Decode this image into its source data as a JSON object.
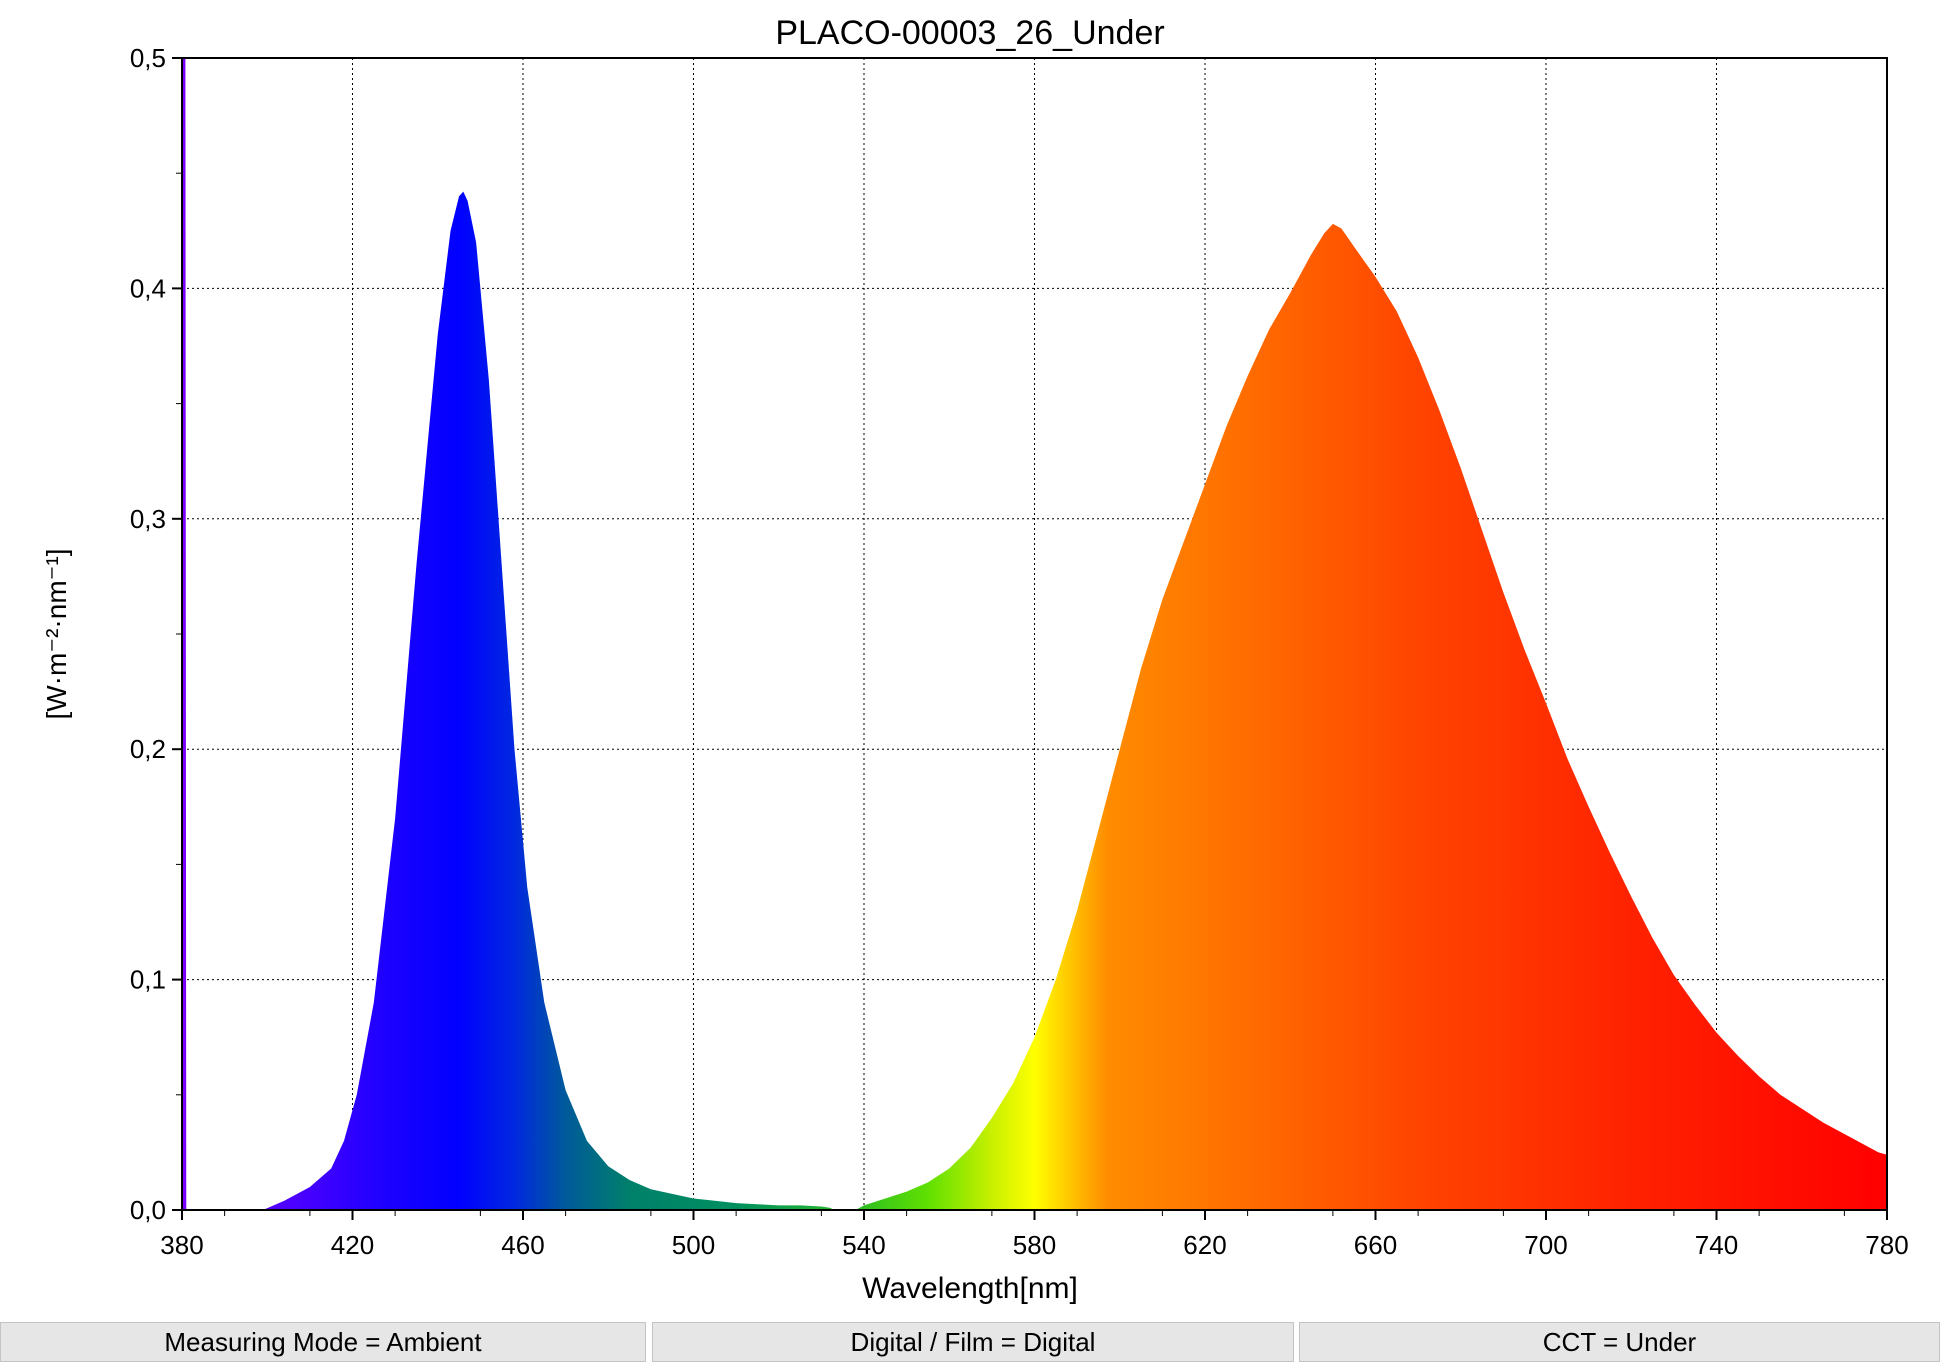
{
  "chart_data": {
    "type": "area",
    "title": "PLACO-00003_26_Under",
    "xlabel": "Wavelength[nm]",
    "ylabel": "[W·m⁻²·nm⁻¹]",
    "xlim": [
      380,
      780
    ],
    "ylim": [
      0,
      0.5
    ],
    "xticks": [
      380,
      420,
      460,
      500,
      540,
      580,
      620,
      660,
      700,
      740,
      780
    ],
    "xtick_labels": [
      "380",
      "420",
      "460",
      "500",
      "540",
      "580",
      "620",
      "660",
      "700",
      "740",
      "780"
    ],
    "yticks": [
      0,
      0.1,
      0.2,
      0.3,
      0.4,
      0.5
    ],
    "ytick_labels": [
      "0,0",
      "0,1",
      "0,2",
      "0,3",
      "0,4",
      "0,5"
    ],
    "grid": true,
    "fill": "visible-spectrum gradient by wavelength",
    "series": [
      {
        "x": [
          380,
          380.2,
          380.4,
          380.6,
          380.8,
          381,
          399,
          404,
          410,
          415,
          418,
          421,
          425,
          430,
          435,
          440,
          443,
          445,
          446,
          447,
          449,
          452,
          455,
          458,
          461,
          465,
          470,
          475,
          480,
          485,
          490,
          495,
          500,
          505,
          510,
          515,
          520,
          525,
          530,
          532,
          533,
          538,
          540,
          545,
          550,
          555,
          560,
          565,
          570,
          575,
          580,
          585,
          590,
          595,
          600,
          605,
          610,
          615,
          620,
          625,
          630,
          635,
          640,
          645,
          648,
          650,
          652,
          655,
          660,
          665,
          670,
          675,
          680,
          685,
          690,
          695,
          700,
          705,
          710,
          715,
          720,
          725,
          730,
          735,
          740,
          745,
          750,
          755,
          760,
          765,
          770,
          775,
          778,
          780
        ],
        "y": [
          0,
          0.5,
          0.5,
          0.5,
          0.5,
          0,
          0,
          0.004,
          0.01,
          0.018,
          0.03,
          0.05,
          0.09,
          0.17,
          0.28,
          0.38,
          0.425,
          0.44,
          0.442,
          0.438,
          0.42,
          0.36,
          0.28,
          0.2,
          0.14,
          0.09,
          0.052,
          0.03,
          0.019,
          0.013,
          0.009,
          0.007,
          0.005,
          0.004,
          0.003,
          0.0025,
          0.002,
          0.002,
          0.0015,
          0.001,
          0,
          0,
          0.002,
          0.005,
          0.008,
          0.012,
          0.018,
          0.027,
          0.04,
          0.055,
          0.075,
          0.1,
          0.13,
          0.165,
          0.2,
          0.235,
          0.265,
          0.29,
          0.315,
          0.34,
          0.362,
          0.382,
          0.398,
          0.415,
          0.424,
          0.428,
          0.426,
          0.418,
          0.405,
          0.39,
          0.37,
          0.347,
          0.322,
          0.295,
          0.268,
          0.243,
          0.22,
          0.196,
          0.175,
          0.155,
          0.136,
          0.118,
          0.102,
          0.089,
          0.077,
          0.067,
          0.058,
          0.05,
          0.044,
          0.038,
          0.033,
          0.028,
          0.025,
          0.024
        ]
      }
    ]
  },
  "status_bar": {
    "measuring_mode": "Measuring Mode = Ambient",
    "digital_film": "Digital / Film = Digital",
    "cct": "CCT = Under"
  }
}
